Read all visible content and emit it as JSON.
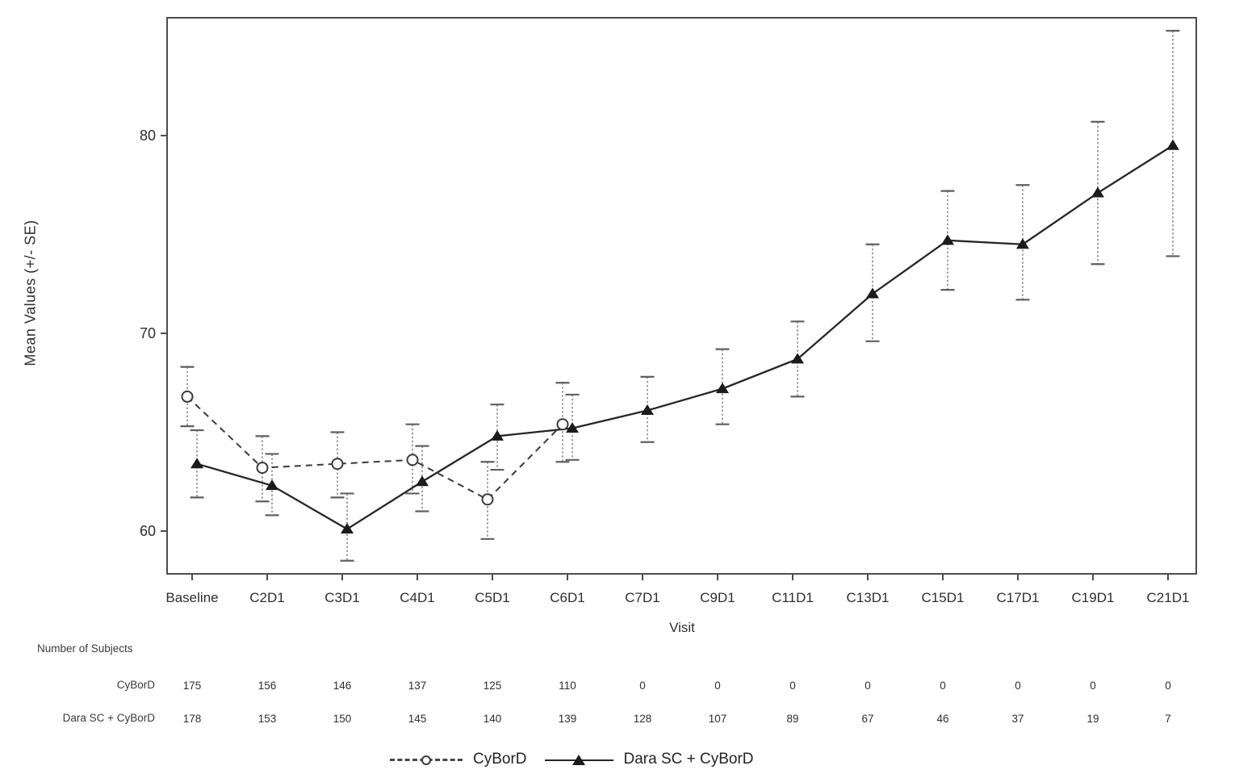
{
  "figure": {
    "y_axis_title": "Mean Values (+/- SE)",
    "x_axis_title": "Visit",
    "subjects_header": "Number of Subjects",
    "legend": [
      {
        "label": "CyBorD",
        "marker": "open-circle",
        "line": "dashed"
      },
      {
        "label": "Dara SC + CyBorD",
        "marker": "filled-triangle",
        "line": "solid"
      }
    ],
    "colors": {
      "axis": "#4d4d4d",
      "text": "#2e2e2e",
      "cybord_line": "#3a3a3a",
      "dara_line": "#262626",
      "error_bar_line": "#8c8c8c",
      "error_bar_cap": "#5f5f5f",
      "triangle_fill": "#1b1b1b",
      "circle_fill": "#ffffff"
    }
  },
  "chart_data": {
    "type": "line",
    "title": "",
    "xlabel": "Visit",
    "ylabel": "Mean Values (+/- SE)",
    "error_bar_meaning": "+/- SE",
    "categories": [
      "Baseline",
      "C2D1",
      "C3D1",
      "C4D1",
      "C5D1",
      "C6D1",
      "C7D1",
      "C9D1",
      "C11D1",
      "C13D1",
      "C15D1",
      "C17D1",
      "C19D1",
      "C21D1"
    ],
    "y_ticks": [
      60,
      70,
      80
    ],
    "ylim": [
      57.8,
      86.0
    ],
    "grid": false,
    "legend_position": "bottom-center",
    "series": [
      {
        "name": "CyBorD",
        "marker": "open-circle",
        "line_style": "dashed",
        "values": [
          66.8,
          63.2,
          63.4,
          63.6,
          61.6,
          65.4,
          null,
          null,
          null,
          null,
          null,
          null,
          null,
          null
        ],
        "lower": [
          65.3,
          61.5,
          61.7,
          61.9,
          59.6,
          63.5,
          null,
          null,
          null,
          null,
          null,
          null,
          null,
          null
        ],
        "upper": [
          68.3,
          64.8,
          65.0,
          65.4,
          63.5,
          67.5,
          null,
          null,
          null,
          null,
          null,
          null,
          null,
          null
        ]
      },
      {
        "name": "Dara SC + CyBorD",
        "marker": "filled-triangle",
        "line_style": "solid",
        "values": [
          63.4,
          62.3,
          60.1,
          62.5,
          64.8,
          65.2,
          66.1,
          67.2,
          68.7,
          72.0,
          74.7,
          74.5,
          77.1,
          79.5
        ],
        "lower": [
          61.7,
          60.8,
          58.5,
          61.0,
          63.1,
          63.6,
          64.5,
          65.4,
          66.8,
          69.6,
          72.2,
          71.7,
          73.5,
          73.9
        ],
        "upper": [
          65.1,
          63.9,
          61.9,
          64.3,
          66.4,
          66.9,
          67.8,
          69.2,
          70.6,
          74.5,
          77.2,
          77.5,
          80.7,
          85.3
        ]
      }
    ],
    "number_of_subjects": {
      "header": "Number of Subjects",
      "rows": [
        {
          "label": "CyBorD",
          "counts": [
            "175",
            "156",
            "146",
            "137",
            "125",
            "110",
            "0",
            "0",
            "0",
            "0",
            "0",
            "0",
            "0",
            "0"
          ]
        },
        {
          "label": "Dara SC + CyBorD",
          "counts": [
            "178",
            "153",
            "150",
            "145",
            "140",
            "139",
            "128",
            "107",
            "89",
            "67",
            "46",
            "37",
            "19",
            "7"
          ]
        }
      ]
    }
  }
}
